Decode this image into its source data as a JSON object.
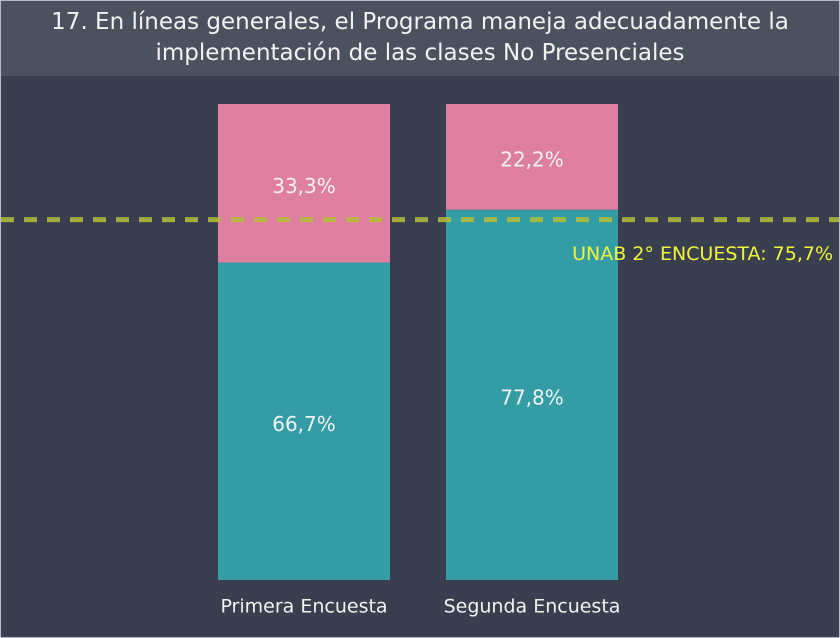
{
  "chart_data": {
    "type": "bar",
    "stacked": true,
    "title": "17. En líneas generales, el Programa maneja adecuadamente la implementación de las clases No Presenciales",
    "categories": [
      "Primera Encuesta",
      "Segunda Encuesta"
    ],
    "series": [
      {
        "color": "#339ca4",
        "values": [
          66.7,
          77.8
        ],
        "value_labels": [
          "66,7%",
          "77,8%"
        ]
      },
      {
        "color": "#de7fa0",
        "values": [
          33.3,
          22.2
        ],
        "value_labels": [
          "33,3%",
          "22,2%"
        ]
      }
    ],
    "ylim": [
      0,
      100
    ],
    "reference_line": {
      "value": 75.7,
      "label": "UNAB 2° ENCUESTA: 75,7%",
      "color": "#b5bf3a",
      "label_color": "#f0f53a"
    }
  }
}
